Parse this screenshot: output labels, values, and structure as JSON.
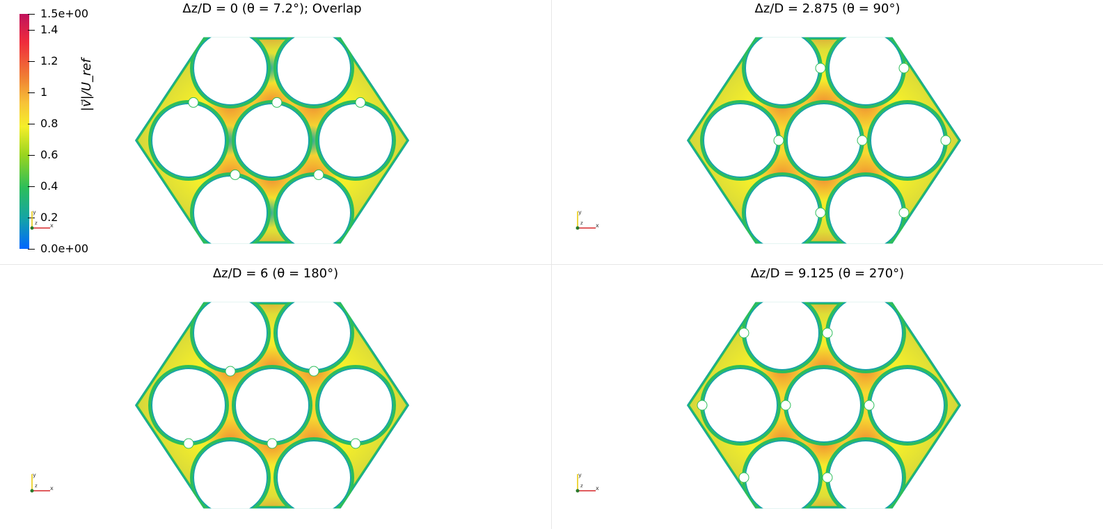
{
  "panels": [
    {
      "title": "Δz/D = 0  (θ = 7.2°); Overlap",
      "theta_deg": 7.2
    },
    {
      "title": "Δz/D = 2.875  (θ = 90°)",
      "theta_deg": 90
    },
    {
      "title": "Δz/D = 6  (θ = 180°)",
      "theta_deg": 180
    },
    {
      "title": "Δz/D = 9.125  (θ = 270°)",
      "theta_deg": 270
    }
  ],
  "colorbar": {
    "title": "|v⃗|/U_ref",
    "ticks": [
      "1.5e+00",
      "1.4",
      "1.2",
      "1",
      "0.8",
      "0.6",
      "0.4",
      "0.2",
      "0.0e+00"
    ],
    "range": [
      0,
      1.5
    ],
    "colors": [
      "#c0125c",
      "#ef2c3c",
      "#f07f33",
      "#f7c338",
      "#f5ef2a",
      "#9ad41f",
      "#2cbe5a",
      "#15a4a6",
      "#0066ff"
    ]
  },
  "axes_labels": {
    "x": "x",
    "y": "y",
    "z": "z"
  }
}
